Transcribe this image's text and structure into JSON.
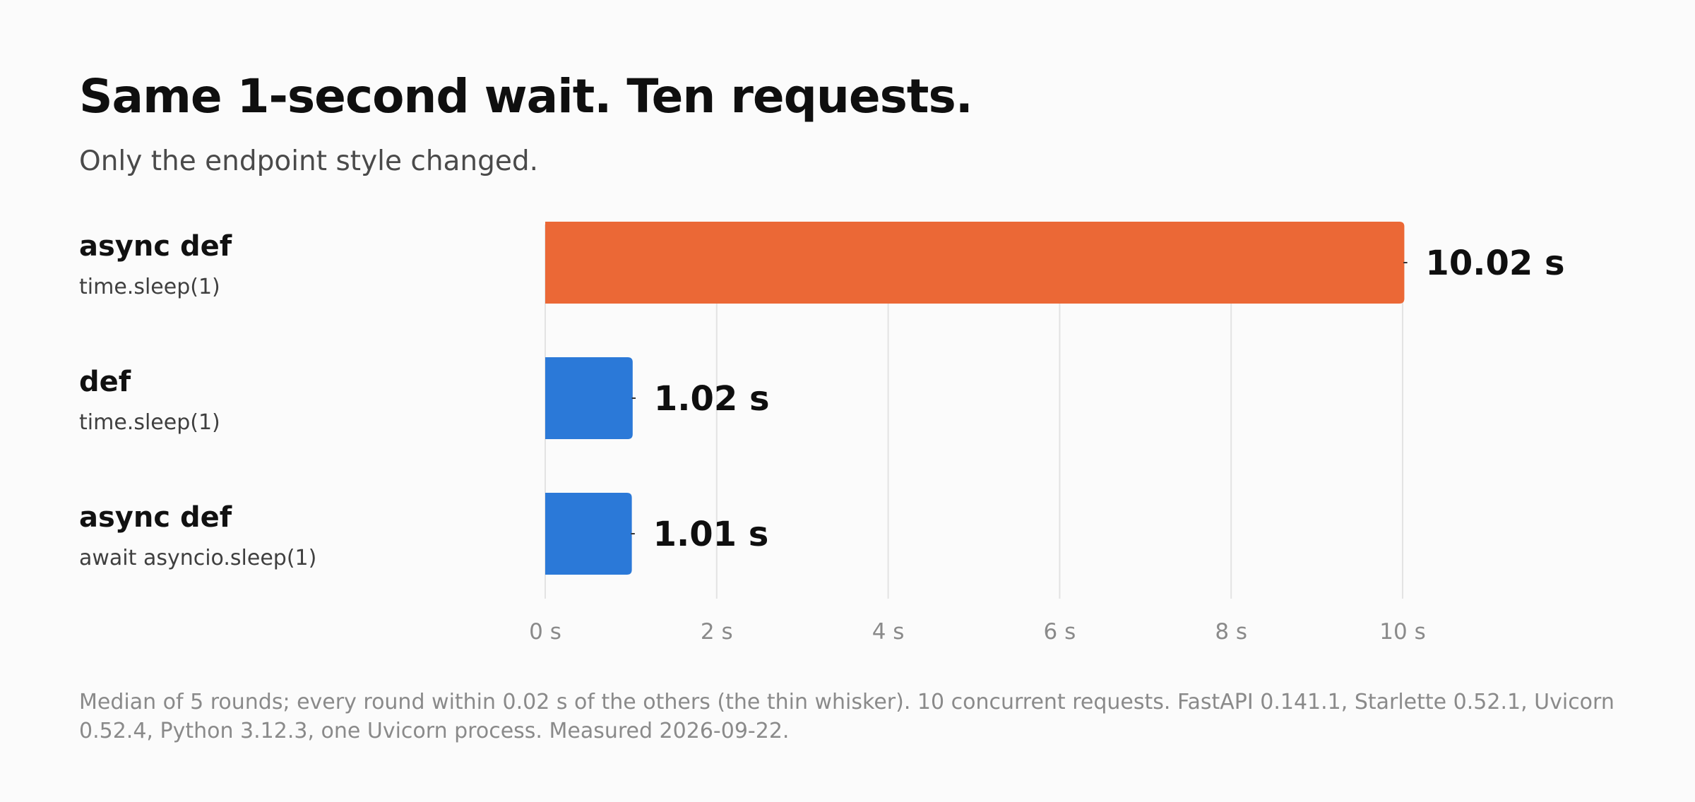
{
  "colors": {
    "highlight": "#eb6836",
    "normal": "#2b79d8",
    "grid": "#e3e3e3",
    "whisker": "#333333"
  },
  "chart_data": {
    "type": "bar",
    "orientation": "horizontal",
    "title": "Same 1-second wait. Ten requests.",
    "subtitle": "Only the endpoint style changed.",
    "categories": [
      {
        "title": "async def",
        "subtitle": "time.sleep(1)",
        "value": 10.02,
        "value_label": "10.02 s",
        "color_key": "highlight"
      },
      {
        "title": "def",
        "subtitle": "time.sleep(1)",
        "value": 1.02,
        "value_label": "1.02 s",
        "color_key": "normal"
      },
      {
        "title": "async def",
        "subtitle": "await asyncio.sleep(1)",
        "value": 1.01,
        "value_label": "1.01 s",
        "color_key": "normal"
      }
    ],
    "whisker_range": 0.02,
    "xlim": [
      0,
      10
    ],
    "xticks": [
      0,
      2,
      4,
      6,
      8,
      10
    ],
    "xtick_labels": [
      "0 s",
      "2 s",
      "4 s",
      "6 s",
      "8 s",
      "10 s"
    ],
    "grid": true,
    "legend": "none",
    "footnote": "Median of 5 rounds; every round within 0.02 s of the others (the thin whisker). 10 concurrent requests. FastAPI 0.141.1, Starlette 0.52.1, Uvicorn 0.52.4, Python 3.12.3, one Uvicorn process. Measured 2026-09-22."
  }
}
